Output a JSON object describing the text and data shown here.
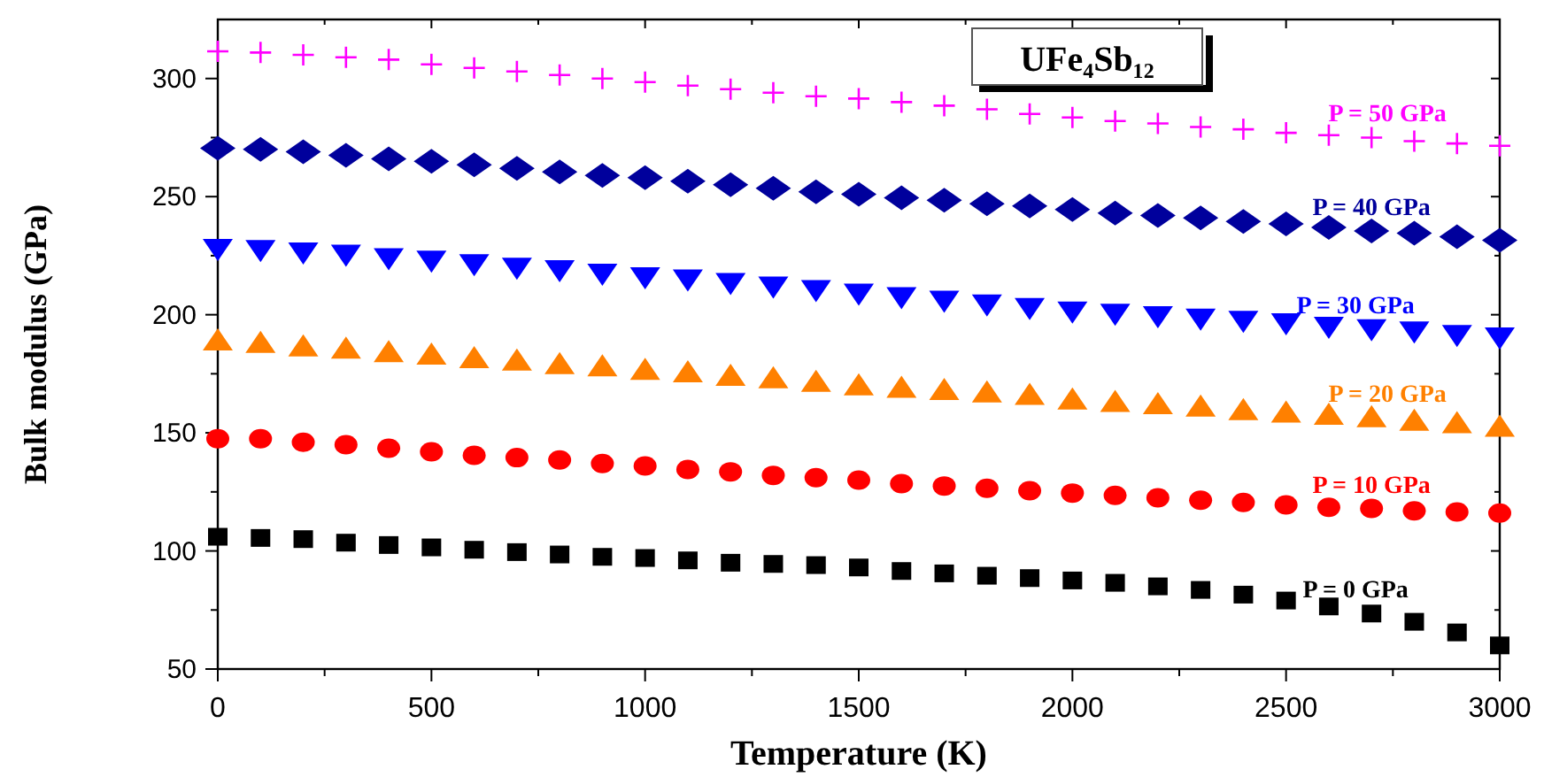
{
  "chart_data": {
    "type": "scatter",
    "title": "UFe₄Sb₁₂",
    "xlabel": "Temperature (K)",
    "ylabel": "Bulk modulus (GPa)",
    "x": [
      0,
      100,
      200,
      300,
      400,
      500,
      600,
      700,
      800,
      900,
      1000,
      1100,
      1200,
      1300,
      1400,
      1500,
      1600,
      1700,
      1800,
      1900,
      2000,
      2100,
      2200,
      2300,
      2400,
      2500,
      2600,
      2700,
      2800,
      2900,
      3000
    ],
    "xlim": [
      0,
      3000
    ],
    "xticks": [
      0,
      {
        "value": 250,
        "label": null
      },
      500,
      {
        "value": 750,
        "label": null
      },
      1000,
      {
        "value": 1250,
        "label": null
      },
      1500,
      {
        "value": 1750,
        "label": null
      },
      2000,
      {
        "value": 2250,
        "label": null
      },
      2500,
      {
        "value": 2750,
        "label": null
      },
      3000
    ],
    "ylim": [
      50,
      325
    ],
    "yticks": [
      50,
      {
        "value": 75,
        "label": null
      },
      100,
      {
        "value": 125,
        "label": null
      },
      150,
      {
        "value": 175,
        "label": null
      },
      200,
      {
        "value": 225,
        "label": null
      },
      250,
      {
        "value": 275,
        "label": null
      },
      300
    ],
    "legend": false,
    "grid": false,
    "series": [
      {
        "name": "P = 0 GPa",
        "color": "#000000",
        "marker": "square",
        "values": [
          106,
          105.5,
          105,
          103.5,
          102.5,
          101.5,
          100.5,
          99.5,
          98.5,
          97.5,
          97,
          96,
          95,
          94.5,
          94,
          93,
          91.5,
          90.5,
          89.5,
          88.5,
          87.5,
          86.5,
          85,
          83.5,
          81.5,
          79,
          76.5,
          73.5,
          70,
          65.5,
          60
        ]
      },
      {
        "name": "P = 10 GPa",
        "color": "#ff0000",
        "marker": "circle",
        "values": [
          147.5,
          147.5,
          146,
          145,
          143.5,
          142,
          140.5,
          139.5,
          138.5,
          137,
          136,
          134.5,
          133.5,
          132,
          131,
          130,
          128.5,
          127.5,
          126.5,
          125.5,
          124.5,
          123.5,
          122.5,
          121.5,
          120.5,
          119.5,
          118.5,
          118,
          117,
          116.5,
          116
        ]
      },
      {
        "name": "P = 20 GPa",
        "color": "#ff8000",
        "marker": "triangle",
        "values": [
          189,
          188,
          186.5,
          185.5,
          184,
          183,
          181.5,
          180.5,
          179,
          178,
          176.5,
          175.5,
          174,
          173,
          171.5,
          170,
          169,
          168,
          167,
          166,
          164,
          163,
          162,
          161,
          159.5,
          158.5,
          157.5,
          156.5,
          155,
          154,
          152.5
        ]
      },
      {
        "name": "P = 30 GPa",
        "color": "#0000ff",
        "marker": "triangle-down",
        "values": [
          228,
          227.5,
          226.5,
          225.5,
          224,
          223,
          221.5,
          220,
          219,
          217.5,
          216,
          215,
          213.5,
          212,
          210.5,
          209,
          207.5,
          206,
          204.5,
          203,
          201.5,
          200.5,
          199.5,
          198.5,
          197.5,
          196.5,
          195,
          194,
          193,
          191.5,
          190.5
        ]
      },
      {
        "name": "P = 40 GPa",
        "color": "#00009c",
        "marker": "diamond",
        "values": [
          270.5,
          270,
          269,
          267.5,
          266,
          265,
          263.5,
          262,
          260.5,
          259,
          258,
          256.5,
          255,
          253.5,
          252,
          251,
          249.5,
          248.5,
          247,
          246,
          244.5,
          243,
          242,
          241,
          239.5,
          238.5,
          237,
          235.5,
          234.5,
          233,
          231.5
        ]
      },
      {
        "name": "P = 50 GPa",
        "color": "#ff00ff",
        "marker": "cross",
        "values": [
          311.5,
          311,
          310,
          309,
          308,
          306,
          304.5,
          303,
          301.5,
          300,
          298.5,
          297,
          295.5,
          294,
          292.5,
          291.5,
          290,
          288.5,
          287,
          285,
          283.5,
          282,
          281,
          279.5,
          278.5,
          277,
          276,
          275,
          273.5,
          272.5,
          271.5
        ]
      }
    ]
  }
}
